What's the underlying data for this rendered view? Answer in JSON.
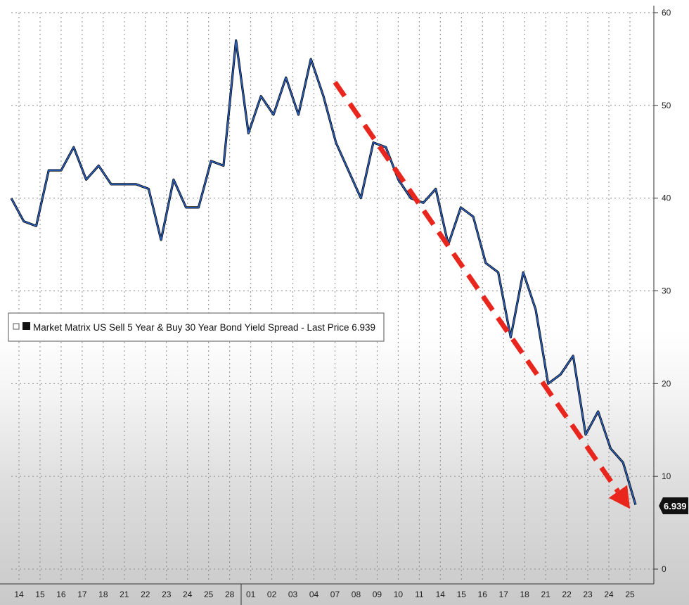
{
  "chart_data": {
    "type": "line",
    "title": "",
    "xlabel": "",
    "ylabel": "",
    "ylim": [
      0,
      60
    ],
    "y_ticks": [
      0,
      10,
      20,
      30,
      40,
      50,
      60
    ],
    "y_axis_side": "right",
    "grid": true,
    "legend": {
      "placement": "left",
      "text": "Market Matrix US Sell 5 Year & Buy 30 Year Bond Yield Spread - Last Price 6.939"
    },
    "last_price_label": "6.939",
    "x_tick_labels": [
      "14",
      "15",
      "16",
      "17",
      "18",
      "21",
      "22",
      "23",
      "24",
      "25",
      "28",
      "01",
      "02",
      "03",
      "04",
      "07",
      "08",
      "09",
      "10",
      "11",
      "14",
      "15",
      "16",
      "17",
      "18",
      "21",
      "22",
      "23",
      "24",
      "25"
    ],
    "series": [
      {
        "color": "#2b63c4",
        "values": [
          40,
          37.5,
          37,
          43,
          43,
          45.5,
          42,
          43.5,
          41.5,
          41.5,
          41.5,
          41,
          35.5,
          42,
          39,
          39,
          44,
          43.5,
          57,
          47,
          51,
          49,
          53,
          49,
          55,
          51,
          46,
          43,
          40,
          46,
          45.5,
          42,
          40,
          39.5,
          41,
          35,
          39,
          38,
          33,
          32,
          25,
          32,
          28,
          20,
          21,
          23,
          14.5,
          17,
          13,
          11.5,
          6.939
        ]
      }
    ],
    "annotation": {
      "type": "trend-arrow",
      "color": "#e8261d",
      "from": {
        "x_index": 15,
        "y": 52.5
      },
      "to": {
        "x_index": 29,
        "y": 6.5
      }
    }
  }
}
